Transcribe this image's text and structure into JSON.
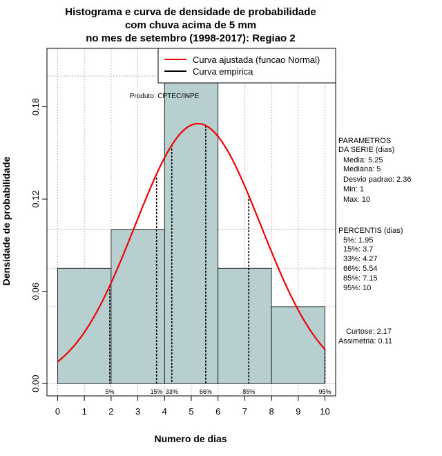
{
  "chart_data": {
    "type": "bar",
    "title": [
      "Histograma e curva de densidade de probabilidade",
      "com chuva acima de 5 mm",
      "no mes de setembro (1998-2017): Regiao 2"
    ],
    "xlabel": "Numero de dias",
    "ylabel": "Densidade de probabilidade",
    "xlim": [
      -0.4,
      10.4
    ],
    "ylim": [
      -0.008,
      0.218
    ],
    "x_ticks": [
      0,
      1,
      2,
      3,
      4,
      5,
      6,
      7,
      8,
      9,
      10
    ],
    "y_ticks": [
      0.0,
      0.06,
      0.12,
      0.18
    ],
    "y_tick_labels": [
      "0.00",
      "0.06",
      "0.12",
      "0.18"
    ],
    "bars": [
      {
        "from": 0,
        "to": 2,
        "density": 0.075
      },
      {
        "from": 2,
        "to": 4,
        "density": 0.1
      },
      {
        "from": 4,
        "to": 6,
        "density": 0.2
      },
      {
        "from": 6,
        "to": 8,
        "density": 0.075
      },
      {
        "from": 8,
        "to": 10,
        "density": 0.05
      }
    ],
    "bar_color": "#b8cfcf",
    "curve_color": "#ee0000",
    "normal_curve": {
      "mean": 5.25,
      "sd": 2.36,
      "x_range": [
        0,
        10
      ]
    },
    "percentile_lines": [
      {
        "label": "5%",
        "x": 1.95
      },
      {
        "label": "15%",
        "x": 3.7
      },
      {
        "label": "33%",
        "x": 4.27
      },
      {
        "label": "66%",
        "x": 5.54
      },
      {
        "label": "85%",
        "x": 7.15
      },
      {
        "label": "95%",
        "x": 10
      }
    ],
    "legend": [
      {
        "label": "Curva ajustada (funcao Normal)",
        "color": "#ee0000"
      },
      {
        "label": "Curva empirica",
        "color": "#000000"
      }
    ],
    "annotation": "Produto: CPTEC/INPE",
    "side_panel": [
      "PARAMETROS",
      "DA SERIE (dias)",
      "Media: 5.25",
      "Mediana: 5",
      "Desvio padrao: 2.36",
      "Min: 1",
      "Max: 10",
      "PERCENTIS (dias)",
      "5%: 1.95",
      "15%: 3.7",
      "33%: 4.27",
      "66%: 5.54",
      "85%: 7.15",
      "95%: 10",
      "Curtose: 2.17",
      "Assimetria: 0.11"
    ]
  }
}
